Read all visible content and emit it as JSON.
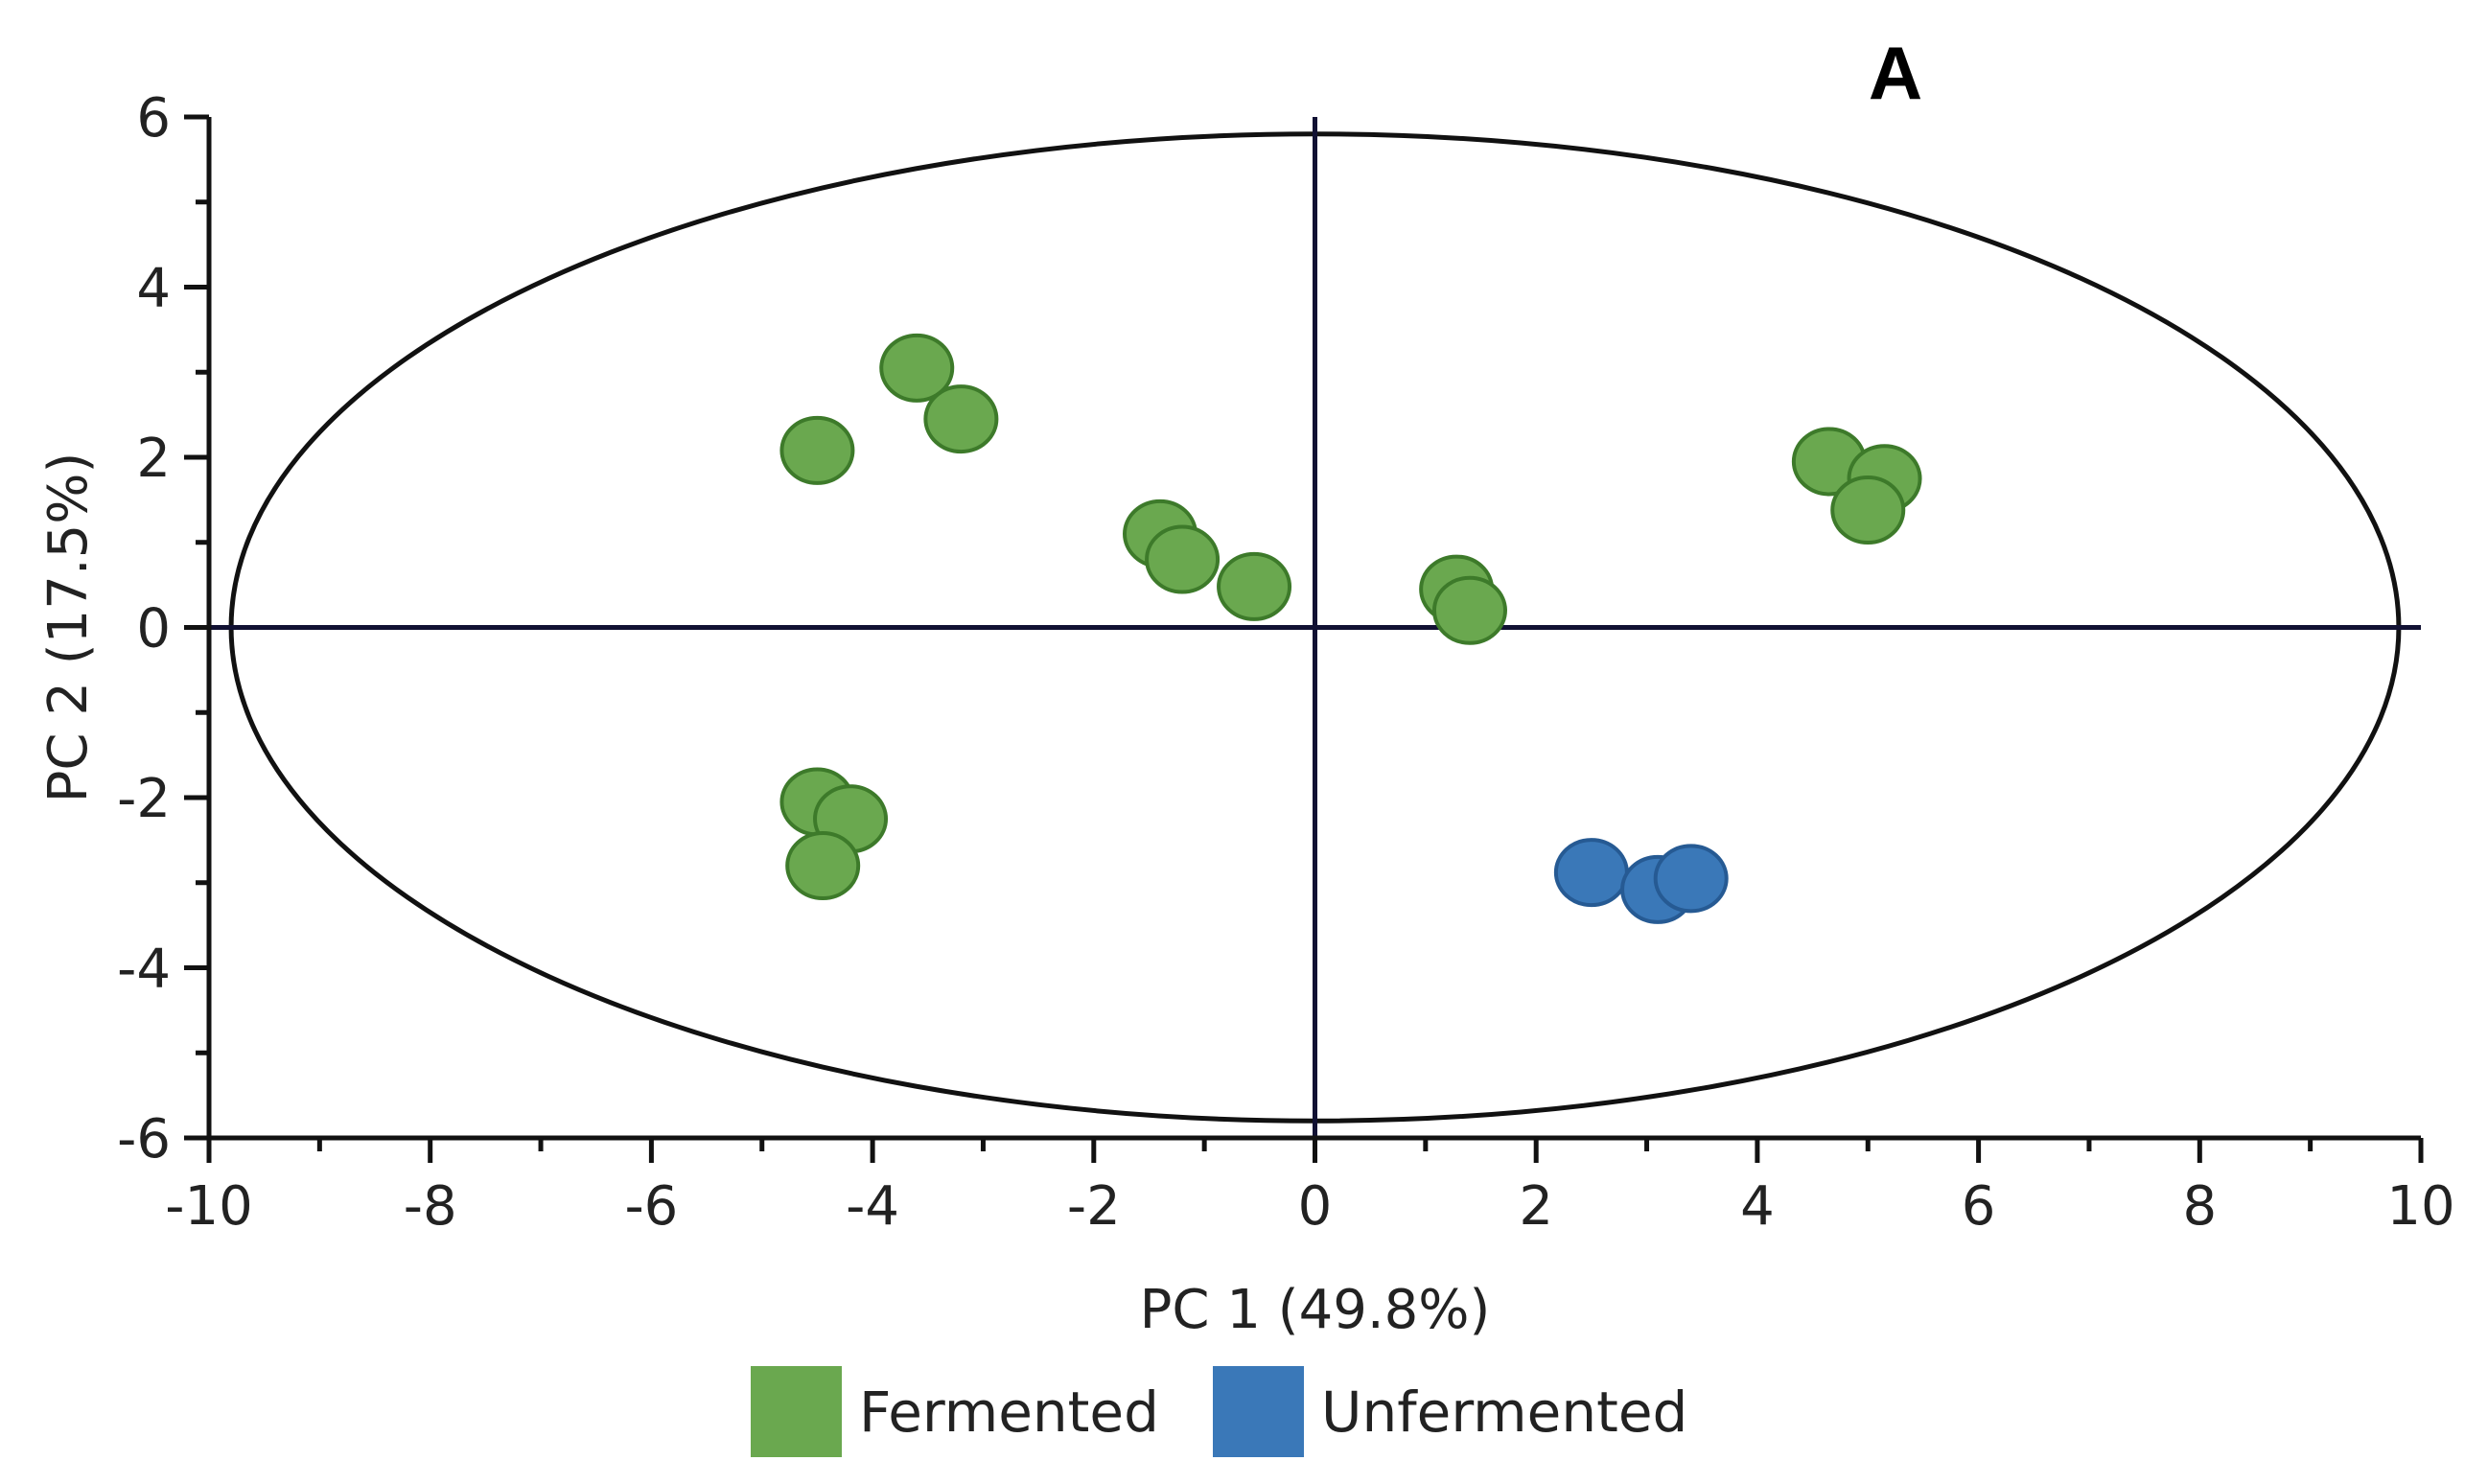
{
  "panel_label": "A",
  "chart_data": {
    "type": "scatter",
    "title": "",
    "xlabel": "PC 1 (49.8%)",
    "ylabel": "PC 2 (17.5%)",
    "xlim": [
      -10,
      10
    ],
    "ylim": [
      -6,
      6
    ],
    "x_major_ticks": [
      -10,
      -8,
      -6,
      -4,
      -2,
      0,
      2,
      4,
      6,
      8,
      10
    ],
    "x_tick_labels": [
      "-10",
      "-8",
      "-6",
      "-4",
      "-2",
      "0",
      "2",
      "4",
      "6",
      "8",
      "10"
    ],
    "y_major_ticks": [
      -6,
      -4,
      -2,
      0,
      2,
      4,
      6
    ],
    "y_tick_labels": [
      "-6",
      "-4",
      "-2",
      "0",
      "2",
      "4",
      "6"
    ],
    "minor_tick_step": 1,
    "ellipse": {
      "label": "Hotelling T2 ellipse",
      "center": [
        0,
        0
      ],
      "x_radius": 9.8,
      "y_radius": 5.8
    },
    "reference_lines": {
      "x": 0,
      "y": 0
    },
    "legend_position": "bottom-center",
    "series": [
      {
        "name": "Fermented",
        "color": "#6aa84f",
        "edge": "#3d7a2a",
        "points": [
          [
            -3.6,
            3.05
          ],
          [
            -3.2,
            2.45
          ],
          [
            -4.5,
            2.08
          ],
          [
            -1.4,
            1.1
          ],
          [
            -1.2,
            0.8
          ],
          [
            -0.55,
            0.48
          ],
          [
            1.28,
            0.45
          ],
          [
            1.4,
            0.2
          ],
          [
            4.65,
            1.95
          ],
          [
            5.15,
            1.75
          ],
          [
            5.0,
            1.38
          ],
          [
            -4.5,
            -2.05
          ],
          [
            -4.2,
            -2.25
          ],
          [
            -4.45,
            -2.8
          ]
        ]
      },
      {
        "name": "Unfermented",
        "color": "#3a78b8",
        "edge": "#265a93",
        "points": [
          [
            2.5,
            -2.88
          ],
          [
            3.1,
            -3.08
          ],
          [
            3.4,
            -2.95
          ]
        ]
      }
    ]
  }
}
